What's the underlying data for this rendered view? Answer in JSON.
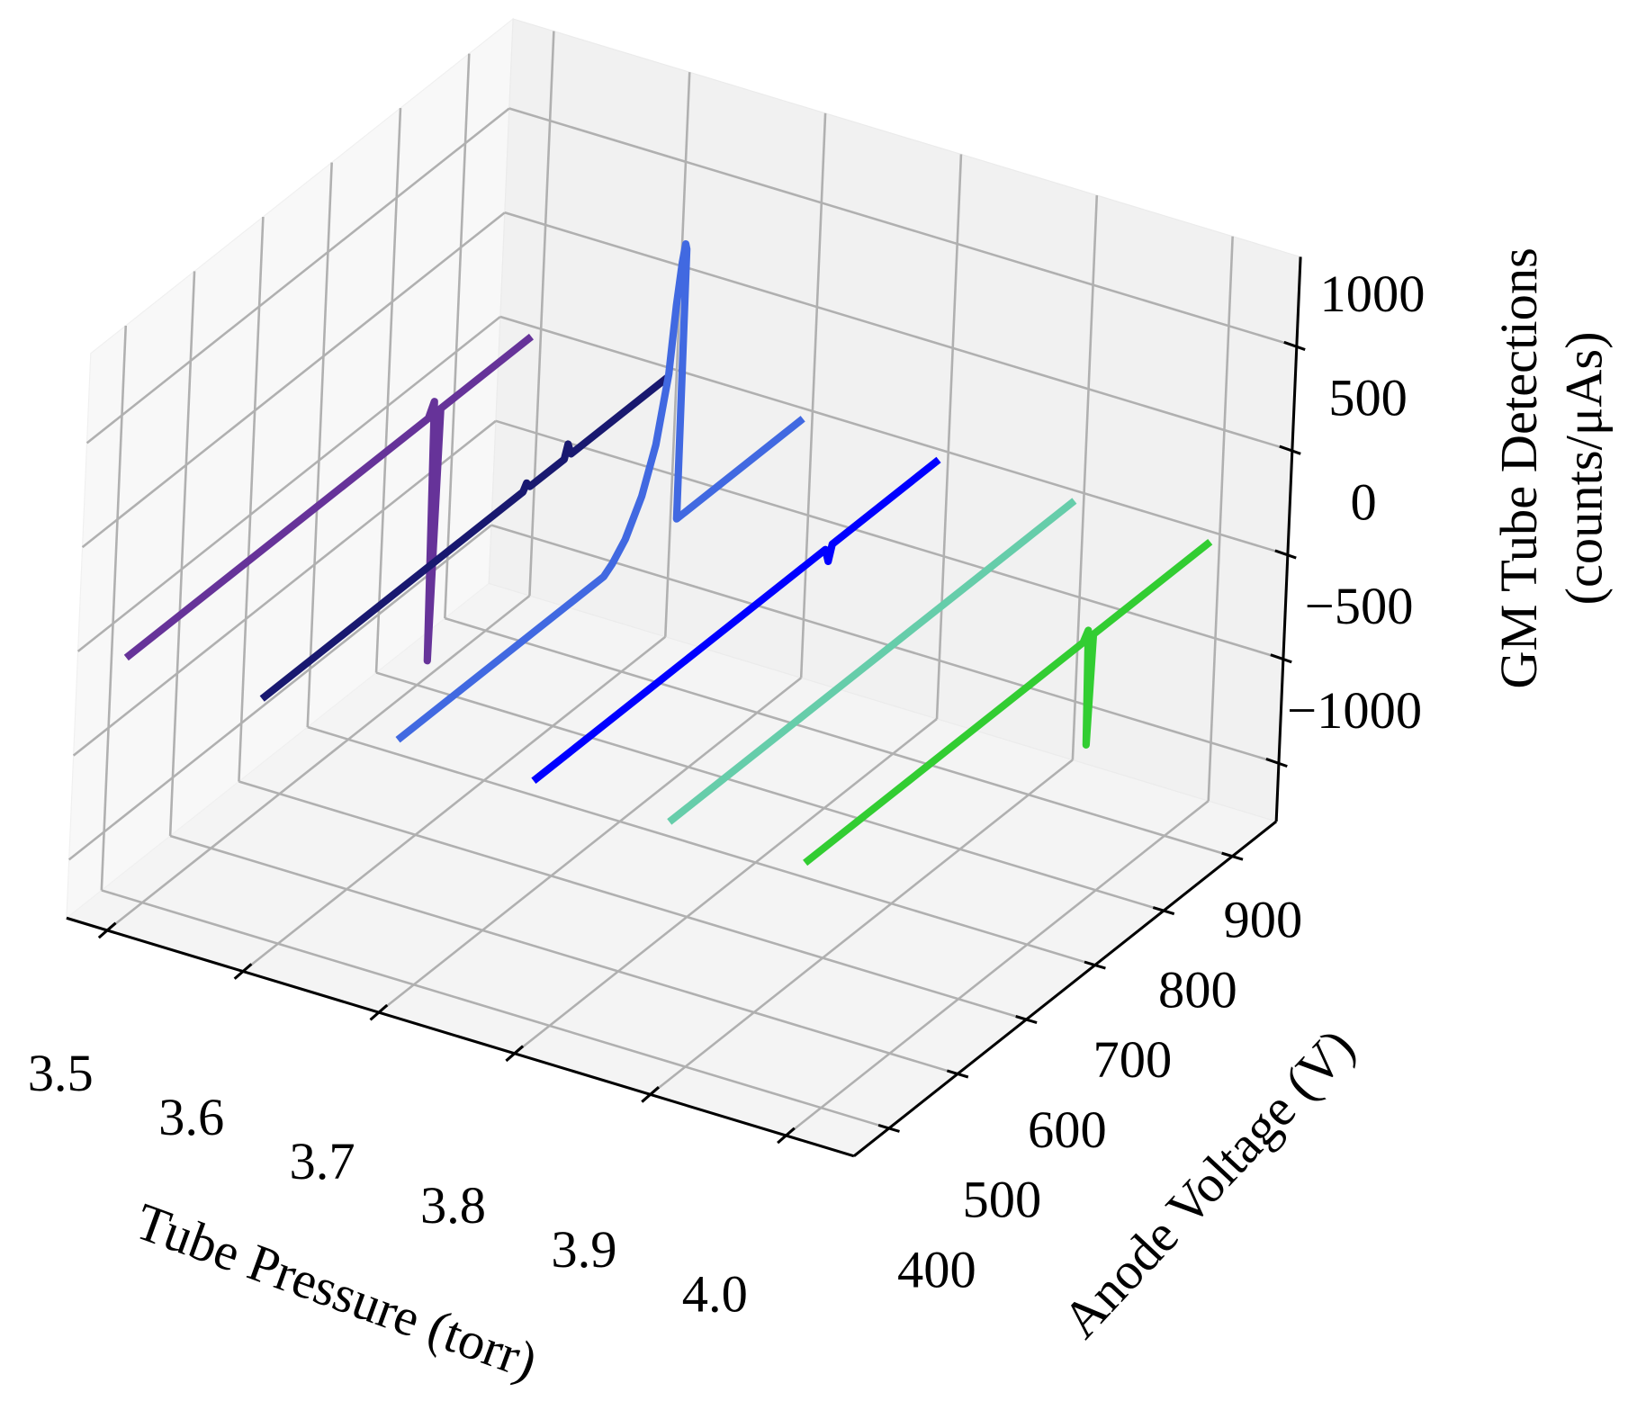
{
  "chart_data": {
    "type": "line3d",
    "xlabel": "Tube Pressure (torr)",
    "ylabel": "Anode Voltage (V)",
    "zlabel": [
      "GM Tube Detections",
      "(counts/μAs)"
    ],
    "xlim": [
      3.47,
      4.05
    ],
    "ylim": [
      349,
      964
    ],
    "zlim": [
      -1280,
      1430
    ],
    "xticks": [
      3.5,
      3.6,
      3.7,
      3.8,
      3.9,
      {
        "value": 4.0,
        "label": "4.0"
      }
    ],
    "yticks": [
      400,
      500,
      600,
      700,
      800,
      900
    ],
    "zticks": [
      {
        "value": -1000,
        "label": "−1000"
      },
      {
        "value": -500,
        "label": "−500"
      },
      0,
      500,
      1000
    ],
    "grid": true,
    "series": [
      {
        "x": 3.5,
        "color": "#663399",
        "y": [
          360,
          800,
          808,
          814,
          818,
          950
        ],
        "values": [
          0,
          0,
          60,
          -1200,
          0,
          0
        ]
      },
      {
        "x": 3.6,
        "color": "#191970",
        "y": [
          360,
          740,
          745,
          750,
          800,
          805,
          810,
          950
        ],
        "values": [
          0,
          0,
          30,
          0,
          0,
          60,
          0,
          0
        ]
      },
      {
        "x": 3.7,
        "color": "#4169e1",
        "y": [
          360,
          660,
          672,
          690,
          712,
          730,
          745,
          752,
          758,
          762,
          764,
          766,
          950
        ],
        "values": [
          0,
          0,
          30,
          100,
          250,
          450,
          750,
          1060,
          1250,
          1330,
          1300,
          0,
          0
        ]
      },
      {
        "x": 3.8,
        "color": "#0000ff",
        "y": [
          360,
          785,
          790,
          795,
          950
        ],
        "values": [
          0,
          0,
          -70,
          0,
          0
        ]
      },
      {
        "x": 3.9,
        "color": "#66cdaa",
        "y": [
          360,
          950
        ],
        "values": [
          0,
          0
        ]
      },
      {
        "x": 4.0,
        "color": "#32cd32",
        "y": [
          360,
          765,
          772,
          776,
          780,
          950
        ],
        "values": [
          0,
          0,
          40,
          -520,
          0,
          0
        ]
      }
    ]
  }
}
